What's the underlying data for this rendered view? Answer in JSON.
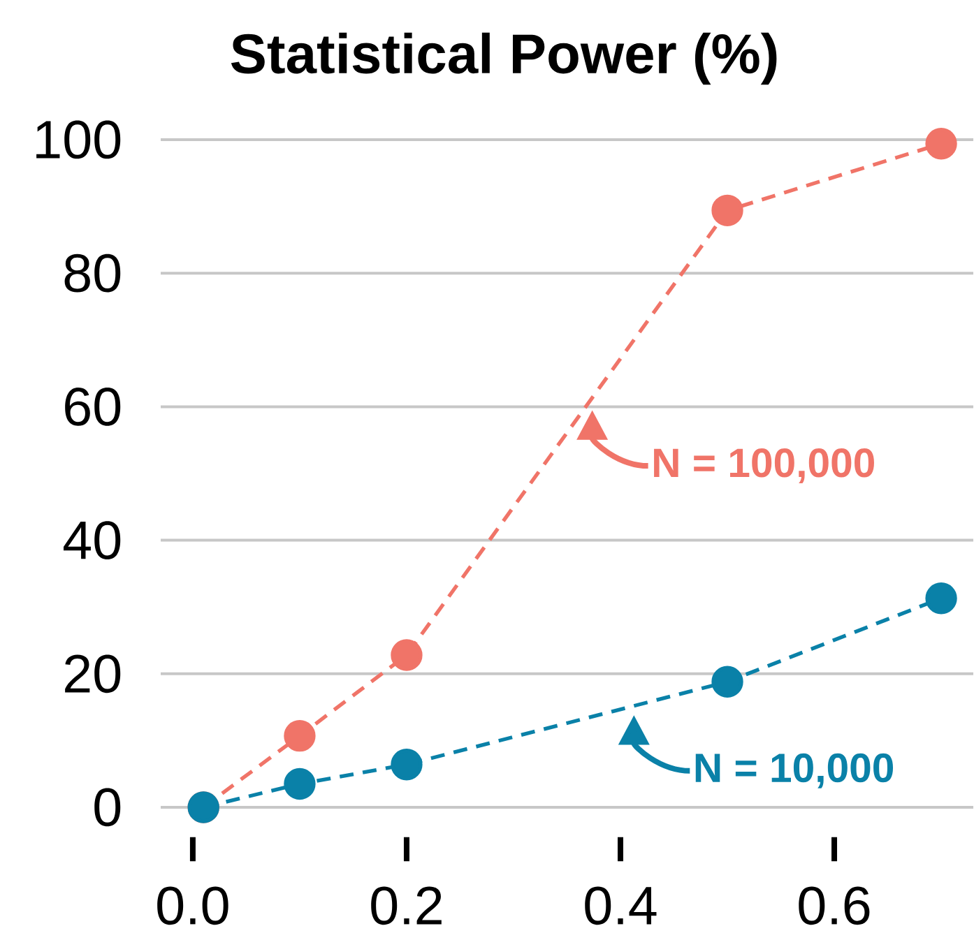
{
  "chart_data": {
    "type": "line",
    "title": "Statistical Power (%)",
    "x": [
      0.01,
      0.1,
      0.2,
      0.5,
      0.7
    ],
    "series": [
      {
        "name": "N = 100,000",
        "color": "#f07468",
        "values": [
          0,
          10.7,
          22.8,
          89.4,
          99.4
        ]
      },
      {
        "name": "N = 10,000",
        "color": "#0a81a8",
        "values": [
          0,
          3.5,
          6.4,
          18.8,
          31.3
        ]
      }
    ],
    "xlim": [
      -0.03,
      0.73
    ],
    "ylim": [
      0,
      100
    ],
    "xticks": [
      {
        "value": 0,
        "label": "0.0"
      },
      0.2,
      0.4,
      0.6
    ],
    "yticks": [
      0,
      20,
      40,
      60,
      80,
      100
    ],
    "grid": "y",
    "marker": "circle",
    "line_style": "dashed",
    "legend": "bottom right"
  }
}
